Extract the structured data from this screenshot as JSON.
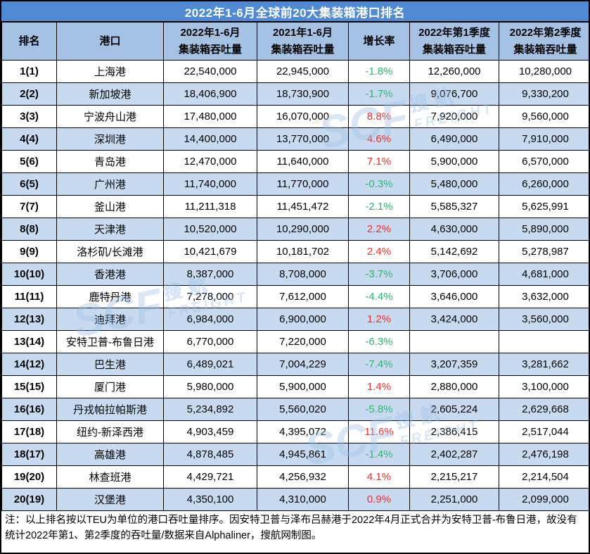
{
  "colors": {
    "title_bg": "#4f8ad3",
    "title_text": "#ffffff",
    "header_bg": "#a5c2e5",
    "row_alt_bg": "#c8daf0",
    "growth_positive": "#f62b2b",
    "growth_negative": "#2eb371",
    "border": "#000000",
    "watermark": "#9cc0e8"
  },
  "watermark": {
    "brand": "SCF",
    "cn": "搜航",
    "en": "FREIGHT"
  },
  "footnote": "注：以上排名按以TEU为单位的港口吞吐量排序。因安特卫普与泽布吕赫港于2022年4月正式合并为安特卫普-布鲁日港，故没有统计2022年第1、第2季度的吞吐量/数据来自Alphaliner，搜航网制图。",
  "chart_data": {
    "type": "table",
    "title": "2022年1-6月全球前20大集装箱港口排名",
    "columns": [
      {
        "l1": "排名",
        "l2": ""
      },
      {
        "l1": "港口",
        "l2": ""
      },
      {
        "l1": "2022年1-6月",
        "l2": "集装箱吞吐量"
      },
      {
        "l1": "2021年1-6月",
        "l2": "集装箱吞吐量"
      },
      {
        "l1": "增长率",
        "l2": ""
      },
      {
        "l1": "2022年第1季度",
        "l2": "集装箱吞吐量"
      },
      {
        "l1": "2022年第2季度",
        "l2": "集装箱吞吐量"
      }
    ],
    "rows": [
      {
        "rank": "1(1)",
        "port": "上海港",
        "h1_2022": "22,540,000",
        "h1_2021": "22,945,000",
        "growth": "-1.8%",
        "q1": "12,260,000",
        "q2": "10,280,000"
      },
      {
        "rank": "2(2)",
        "port": "新加坡港",
        "h1_2022": "18,406,900",
        "h1_2021": "18,730,900",
        "growth": "-1.7%",
        "q1": "9,076,700",
        "q2": "9,330,200"
      },
      {
        "rank": "3(3)",
        "port": "宁波舟山港",
        "h1_2022": "17,480,000",
        "h1_2021": "16,070,000",
        "growth": "8.8%",
        "q1": "7,920,000",
        "q2": "9,560,000"
      },
      {
        "rank": "4(4)",
        "port": "深圳港",
        "h1_2022": "14,400,000",
        "h1_2021": "13,770,000",
        "growth": "4.6%",
        "q1": "6,490,000",
        "q2": "7,910,000"
      },
      {
        "rank": "5(6)",
        "port": "青岛港",
        "h1_2022": "12,470,000",
        "h1_2021": "11,640,000",
        "growth": "7.1%",
        "q1": "5,900,000",
        "q2": "6,570,000"
      },
      {
        "rank": "6(5)",
        "port": "广州港",
        "h1_2022": "11,740,000",
        "h1_2021": "11,770,000",
        "growth": "-0.3%",
        "q1": "5,480,000",
        "q2": "6,260,000"
      },
      {
        "rank": "7(7)",
        "port": "釜山港",
        "h1_2022": "11,211,318",
        "h1_2021": "11,451,472",
        "growth": "-2.1%",
        "q1": "5,585,327",
        "q2": "5,625,991"
      },
      {
        "rank": "8(8)",
        "port": "天津港",
        "h1_2022": "10,520,000",
        "h1_2021": "10,290,000",
        "growth": "2.2%",
        "q1": "4,630,000",
        "q2": "5,890,000"
      },
      {
        "rank": "9(9)",
        "port": "洛杉矶/长滩港",
        "h1_2022": "10,421,679",
        "h1_2021": "10,181,702",
        "growth": "2.4%",
        "q1": "5,142,692",
        "q2": "5,278,987"
      },
      {
        "rank": "10(10)",
        "port": "香港港",
        "h1_2022": "8,387,000",
        "h1_2021": "8,708,000",
        "growth": "-3.7%",
        "q1": "3,706,000",
        "q2": "4,681,000"
      },
      {
        "rank": "11(11)",
        "port": "鹿特丹港",
        "h1_2022": "7,278,000",
        "h1_2021": "7,612,000",
        "growth": "-4.4%",
        "q1": "3,646,000",
        "q2": "3,632,000"
      },
      {
        "rank": "12(13)",
        "port": "迪拜港",
        "h1_2022": "6,984,000",
        "h1_2021": "6,900,000",
        "growth": "1.2%",
        "q1": "3,424,000",
        "q2": "3,560,000"
      },
      {
        "rank": "13(14)",
        "port": "安特卫普-布鲁日港",
        "h1_2022": "6,770,000",
        "h1_2021": "7,220,000",
        "growth": "-6.3%",
        "q1": "",
        "q2": ""
      },
      {
        "rank": "14(12)",
        "port": "巴生港",
        "h1_2022": "6,489,021",
        "h1_2021": "7,004,229",
        "growth": "-7.4%",
        "q1": "3,207,359",
        "q2": "3,281,662"
      },
      {
        "rank": "15(15)",
        "port": "厦门港",
        "h1_2022": "5,980,000",
        "h1_2021": "5,900,000",
        "growth": "1.4%",
        "q1": "2,880,000",
        "q2": "3,100,000"
      },
      {
        "rank": "16(16)",
        "port": "丹戎帕拉帕斯港",
        "h1_2022": "5,234,892",
        "h1_2021": "5,560,020",
        "growth": "-5.8%",
        "q1": "2,605,224",
        "q2": "2,629,668"
      },
      {
        "rank": "17(18)",
        "port": "纽约-新泽西港",
        "h1_2022": "4,903,459",
        "h1_2021": "4,395,072",
        "growth": "11.6%",
        "q1": "2,386,415",
        "q2": "2,517,044"
      },
      {
        "rank": "18(17)",
        "port": "高雄港",
        "h1_2022": "4,878,485",
        "h1_2021": "4,945,861",
        "growth": "-1.4%",
        "q1": "2,402,287",
        "q2": "2,476,198"
      },
      {
        "rank": "19(20)",
        "port": "林查班港",
        "h1_2022": "4,429,721",
        "h1_2021": "4,256,932",
        "growth": "4.1%",
        "q1": "2,215,217",
        "q2": "2,214,504"
      },
      {
        "rank": "20(19)",
        "port": "汉堡港",
        "h1_2022": "4,350,100",
        "h1_2021": "4,310,000",
        "growth": "0.9%",
        "q1": "2,251,000",
        "q2": "2,099,000"
      }
    ]
  }
}
